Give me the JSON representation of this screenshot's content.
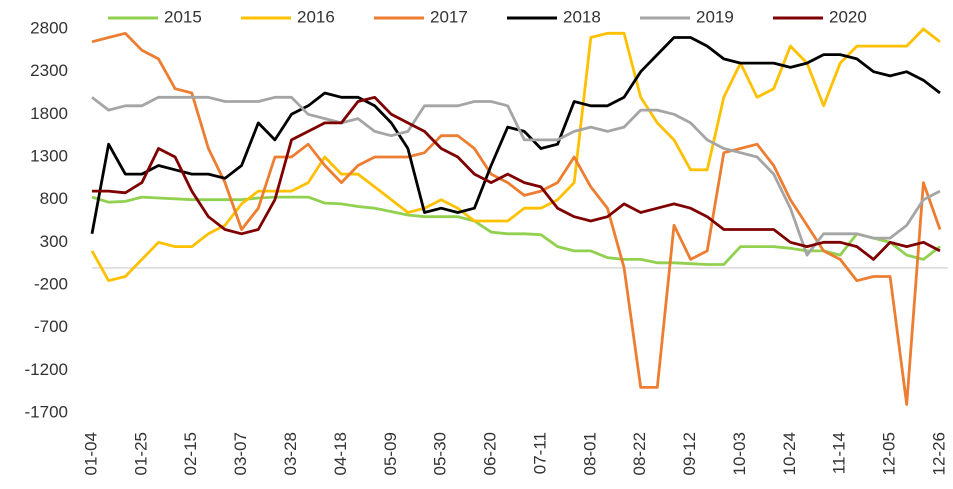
{
  "chart_data": {
    "type": "line",
    "categories": [
      "01-04",
      null,
      null,
      "01-25",
      null,
      null,
      "02-15",
      null,
      null,
      "03-07",
      null,
      null,
      "03-28",
      null,
      null,
      "04-18",
      null,
      null,
      "05-09",
      null,
      null,
      "05-30",
      null,
      null,
      "06-20",
      null,
      null,
      "07-11",
      null,
      null,
      "08-01",
      null,
      null,
      "08-22",
      null,
      null,
      "09-12",
      null,
      null,
      "10-03",
      null,
      null,
      "10-24",
      null,
      null,
      "11-14",
      null,
      null,
      "12-05",
      null,
      null,
      "12-26"
    ],
    "ylim": [
      -1700,
      2800
    ],
    "yticks": [
      -1700,
      -1200,
      -700,
      -200,
      300,
      800,
      1300,
      1800,
      2300,
      2800
    ],
    "zero_line": true,
    "legend": "top",
    "series": [
      {
        "name": "2015",
        "color": "#92d050",
        "values": [
          830,
          770,
          780,
          830,
          820,
          810,
          800,
          800,
          800,
          800,
          820,
          830,
          830,
          830,
          760,
          750,
          720,
          700,
          660,
          620,
          600,
          600,
          600,
          550,
          420,
          400,
          400,
          390,
          250,
          200,
          200,
          120,
          100,
          100,
          60,
          60,
          50,
          40,
          40,
          250,
          250,
          250,
          230,
          200,
          200,
          150,
          400,
          350,
          300,
          150,
          100,
          250
        ]
      },
      {
        "name": "2016",
        "color": "#ffc000",
        "values": [
          200,
          -150,
          -100,
          100,
          300,
          250,
          250,
          400,
          500,
          750,
          900,
          900,
          900,
          1000,
          1300,
          1100,
          1100,
          950,
          800,
          650,
          700,
          800,
          700,
          550,
          550,
          550,
          700,
          700,
          800,
          1000,
          2700,
          2750,
          2750,
          2000,
          1700,
          1500,
          1150,
          1150,
          2000,
          2400,
          2000,
          2100,
          2600,
          2400,
          1900,
          2400,
          2600,
          2600,
          2600,
          2600,
          2800,
          2650
        ]
      },
      {
        "name": "2017",
        "color": "#ed7d31",
        "values": [
          2650,
          2700,
          2750,
          2550,
          2450,
          2100,
          2050,
          1400,
          1000,
          450,
          700,
          1300,
          1300,
          1450,
          1200,
          1000,
          1200,
          1300,
          1300,
          1300,
          1350,
          1550,
          1550,
          1400,
          1100,
          1000,
          850,
          900,
          1000,
          1300,
          950,
          700,
          0,
          -1400,
          -1400,
          500,
          100,
          200,
          1350,
          1400,
          1450,
          1200,
          800,
          500,
          200,
          100,
          -150,
          -100,
          -100,
          -1600,
          1000,
          450
        ]
      },
      {
        "name": "2018",
        "color": "#000000",
        "values": [
          400,
          1450,
          1100,
          1100,
          1200,
          1150,
          1100,
          1100,
          1050,
          1200,
          1700,
          1500,
          1800,
          1900,
          2050,
          2000,
          2000,
          1900,
          1700,
          1400,
          650,
          700,
          650,
          700,
          1200,
          1650,
          1600,
          1400,
          1450,
          1950,
          1900,
          1900,
          2000,
          2300,
          2500,
          2700,
          2700,
          2600,
          2450,
          2400,
          2400,
          2400,
          2350,
          2400,
          2500,
          2500,
          2450,
          2300,
          2250,
          2300,
          2200,
          2050
        ]
      },
      {
        "name": "2019",
        "color": "#a5a5a5",
        "values": [
          2000,
          1850,
          1900,
          1900,
          2000,
          2000,
          2000,
          2000,
          1950,
          1950,
          1950,
          2000,
          2000,
          1800,
          1750,
          1700,
          1750,
          1600,
          1550,
          1600,
          1900,
          1900,
          1900,
          1950,
          1950,
          1900,
          1500,
          1500,
          1500,
          1600,
          1650,
          1600,
          1650,
          1850,
          1850,
          1800,
          1700,
          1500,
          1400,
          1350,
          1300,
          1100,
          700,
          150,
          400,
          400,
          400,
          350,
          350,
          500,
          800,
          900
        ]
      },
      {
        "name": "2020",
        "color": "#7f0000",
        "values": [
          900,
          900,
          880,
          1000,
          1400,
          1300,
          900,
          600,
          450,
          400,
          450,
          800,
          1500,
          1600,
          1700,
          1700,
          1950,
          2000,
          1800,
          1700,
          1600,
          1400,
          1300,
          1100,
          1000,
          1100,
          1000,
          950,
          700,
          600,
          550,
          600,
          750,
          650,
          700,
          750,
          700,
          600,
          450,
          450,
          450,
          450,
          300,
          250,
          300,
          300,
          250,
          100,
          300,
          250,
          300,
          200
        ]
      }
    ]
  }
}
